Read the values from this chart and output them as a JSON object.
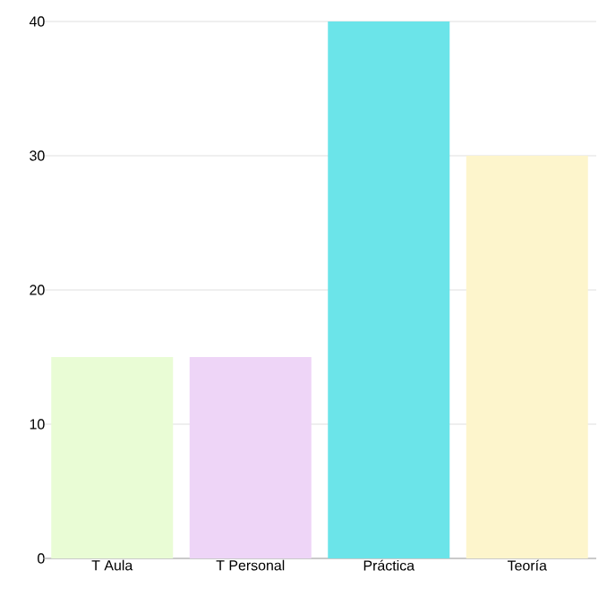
{
  "chart_data": {
    "type": "bar",
    "categories": [
      "T Aula",
      "T Personal",
      "Práctica",
      "Teoría"
    ],
    "values": [
      15,
      15,
      40,
      30
    ],
    "colors": [
      "#e9fcd5",
      "#eed5f7",
      "#6be4e9",
      "#fdf5cc"
    ],
    "ylim": [
      0,
      40
    ],
    "yticks": [
      0,
      10,
      20,
      30,
      40
    ],
    "grid": "y"
  }
}
